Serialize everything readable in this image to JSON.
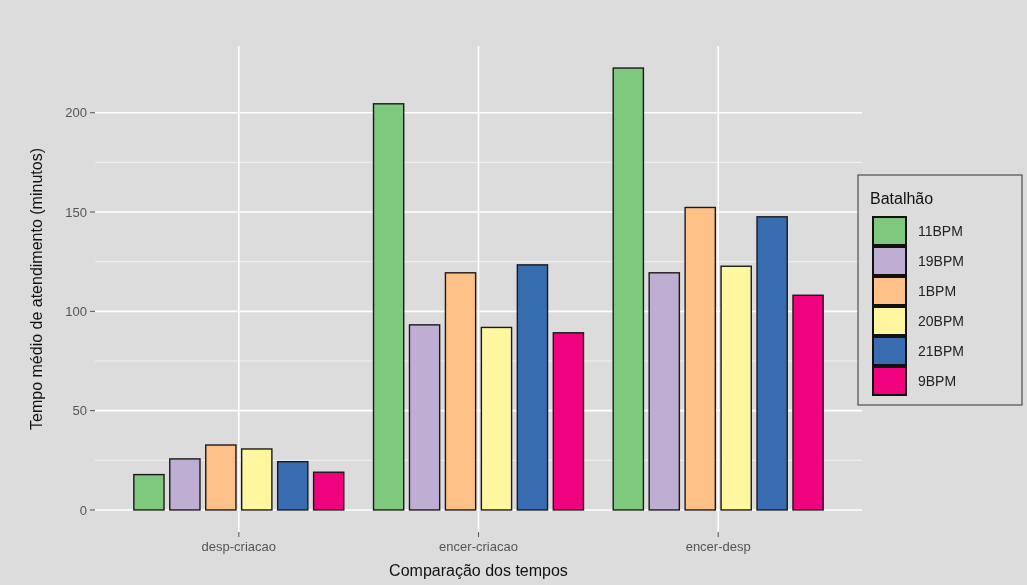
{
  "chart_data": {
    "type": "bar",
    "xlabel": "Comparação dos tempos",
    "ylabel": "Tempo médio de atendimento (minutos)",
    "legend_title": "Batalhão",
    "categories": [
      "desp-criacao",
      "encer-criacao",
      "encer-desp"
    ],
    "series": [
      {
        "name": "11BPM",
        "color": "#7fc97f",
        "values": [
          17.8,
          204.5,
          222.5
        ]
      },
      {
        "name": "19BPM",
        "color": "#beaed4",
        "values": [
          25.7,
          93.2,
          119.4
        ]
      },
      {
        "name": "1BPM",
        "color": "#fdc086",
        "values": [
          32.7,
          119.4,
          152.3
        ]
      },
      {
        "name": "20BPM",
        "color": "#fff7a0",
        "values": [
          30.7,
          91.9,
          122.7
        ]
      },
      {
        "name": "21BPM",
        "color": "#386cb0",
        "values": [
          24.3,
          123.4,
          147.6
        ]
      },
      {
        "name": "9BPM",
        "color": "#f0027f",
        "values": [
          19.0,
          89.2,
          108.1
        ]
      }
    ],
    "ylim": [
      -11.1,
      233.6
    ],
    "yticks": [
      0,
      50,
      100,
      150,
      200
    ],
    "grid": true,
    "legend": "right"
  }
}
